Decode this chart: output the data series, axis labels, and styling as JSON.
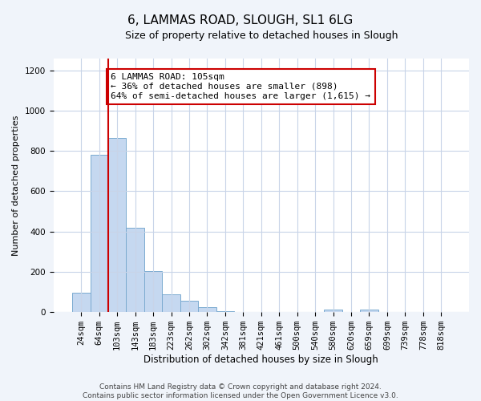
{
  "title": "6, LAMMAS ROAD, SLOUGH, SL1 6LG",
  "subtitle": "Size of property relative to detached houses in Slough",
  "xlabel": "Distribution of detached houses by size in Slough",
  "ylabel": "Number of detached properties",
  "bar_labels": [
    "24sqm",
    "64sqm",
    "103sqm",
    "143sqm",
    "183sqm",
    "223sqm",
    "262sqm",
    "302sqm",
    "342sqm",
    "381sqm",
    "421sqm",
    "461sqm",
    "500sqm",
    "540sqm",
    "580sqm",
    "620sqm",
    "659sqm",
    "699sqm",
    "739sqm",
    "778sqm",
    "818sqm"
  ],
  "bar_values": [
    95,
    780,
    865,
    420,
    205,
    90,
    55,
    25,
    5,
    2,
    1,
    0,
    0,
    0,
    12,
    0,
    12,
    0,
    0,
    0,
    0
  ],
  "bar_color": "#c5d8f0",
  "bar_edge_color": "#7aaad0",
  "vline_x_index": 2,
  "vline_color": "#cc0000",
  "annotation_text": "6 LAMMAS ROAD: 105sqm\n← 36% of detached houses are smaller (898)\n64% of semi-detached houses are larger (1,615) →",
  "annotation_box_color": "#ffffff",
  "annotation_box_edge_color": "#cc0000",
  "ylim": [
    0,
    1260
  ],
  "yticks": [
    0,
    200,
    400,
    600,
    800,
    1000,
    1200
  ],
  "footer_line1": "Contains HM Land Registry data © Crown copyright and database right 2024.",
  "footer_line2": "Contains public sector information licensed under the Open Government Licence v3.0.",
  "background_color": "#f0f4fa",
  "plot_bg_color": "#ffffff",
  "grid_color": "#c8d4e8",
  "title_fontsize": 11,
  "subtitle_fontsize": 9,
  "xlabel_fontsize": 8.5,
  "ylabel_fontsize": 8,
  "tick_fontsize": 7.5,
  "annotation_fontsize": 8,
  "footer_fontsize": 6.5
}
